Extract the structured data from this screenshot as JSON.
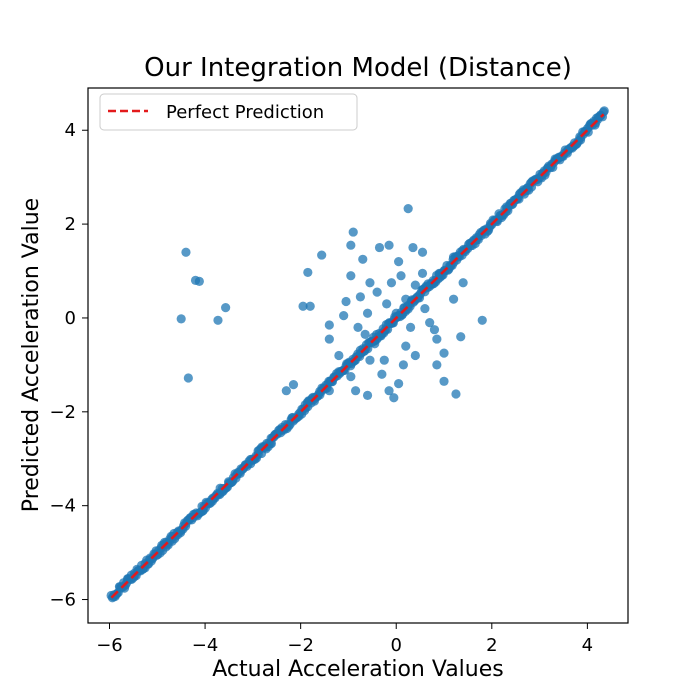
{
  "chart_data": {
    "type": "scatter",
    "title": "Our Integration Model (Distance)",
    "xlabel": "Actual Acceleration Values",
    "ylabel": "Predicted Acceleration Value",
    "xlim": [
      -6.45,
      4.85
    ],
    "ylim": [
      -6.5,
      4.9
    ],
    "xticks": [
      -6,
      -4,
      -2,
      0,
      2,
      4
    ],
    "yticks": [
      -6,
      -4,
      -2,
      0,
      2,
      4
    ],
    "grid": false,
    "legend": {
      "position": "top-left",
      "entries": [
        {
          "name": "Perfect Prediction",
          "style": "dashed",
          "color": "#e31a1c"
        }
      ]
    },
    "reference_line": {
      "name": "Perfect Prediction",
      "x": [
        -5.96,
        4.34
      ],
      "y": [
        -5.96,
        4.34
      ],
      "color": "#e31a1c",
      "dash": true
    },
    "scatter_series": {
      "color": "#1f77b4",
      "opacity": 0.75,
      "diagonal_band": {
        "x_start": -5.96,
        "x_end": 4.35,
        "spread": 0.07
      },
      "outliers": [
        [
          -4.4,
          1.4
        ],
        [
          -4.2,
          0.8
        ],
        [
          -4.12,
          0.78
        ],
        [
          -3.57,
          0.22
        ],
        [
          -4.5,
          -0.02
        ],
        [
          -3.73,
          -0.05
        ],
        [
          -4.35,
          -1.28
        ],
        [
          0.25,
          2.33
        ],
        [
          -0.9,
          1.83
        ],
        [
          -1.56,
          1.34
        ],
        [
          -1.85,
          0.97
        ],
        [
          -1.95,
          0.25
        ],
        [
          -1.8,
          0.25
        ],
        [
          -1.4,
          -0.15
        ],
        [
          -1.4,
          -0.45
        ],
        [
          -0.95,
          1.55
        ],
        [
          -0.95,
          0.9
        ],
        [
          -0.7,
          1.25
        ],
        [
          -0.55,
          0.75
        ],
        [
          -0.35,
          1.5
        ],
        [
          -0.15,
          1.55
        ],
        [
          0.05,
          1.2
        ],
        [
          0.1,
          0.9
        ],
        [
          0.35,
          1.5
        ],
        [
          0.55,
          1.4
        ],
        [
          0.55,
          0.95
        ],
        [
          0.9,
          0.95
        ],
        [
          1.2,
          1.3
        ],
        [
          1.4,
          0.75
        ],
        [
          1.2,
          0.4
        ],
        [
          1.8,
          -0.05
        ],
        [
          1.35,
          -0.4
        ],
        [
          0.8,
          -0.25
        ],
        [
          0.85,
          -0.45
        ],
        [
          1.0,
          -0.75
        ],
        [
          0.85,
          -1.0
        ],
        [
          1.0,
          -1.35
        ],
        [
          1.25,
          -1.62
        ],
        [
          -0.05,
          -1.7
        ],
        [
          -0.15,
          -1.55
        ],
        [
          0.05,
          -1.4
        ],
        [
          -0.3,
          -1.2
        ],
        [
          -0.6,
          -1.65
        ],
        [
          -0.85,
          -1.55
        ],
        [
          -0.95,
          -1.25
        ],
        [
          -1.4,
          -1.55
        ],
        [
          -2.15,
          -1.42
        ],
        [
          -2.3,
          -1.55
        ],
        [
          -1.2,
          -0.8
        ],
        [
          -0.8,
          -0.2
        ],
        [
          -0.6,
          0.1
        ],
        [
          -0.4,
          0.55
        ],
        [
          -0.2,
          0.3
        ],
        [
          0.0,
          0.1
        ],
        [
          0.2,
          0.4
        ],
        [
          0.4,
          0.7
        ],
        [
          0.6,
          0.2
        ],
        [
          -0.45,
          -0.55
        ],
        [
          -0.25,
          -0.9
        ],
        [
          0.2,
          -0.6
        ],
        [
          0.4,
          -0.8
        ],
        [
          -0.75,
          0.45
        ],
        [
          -1.05,
          0.35
        ],
        [
          0.7,
          -0.1
        ],
        [
          -0.1,
          0.75
        ],
        [
          0.3,
          -0.2
        ],
        [
          -0.55,
          -0.9
        ],
        [
          0.15,
          -1.0
        ],
        [
          -1.1,
          0.05
        ],
        [
          -0.65,
          -0.35
        ]
      ]
    }
  }
}
